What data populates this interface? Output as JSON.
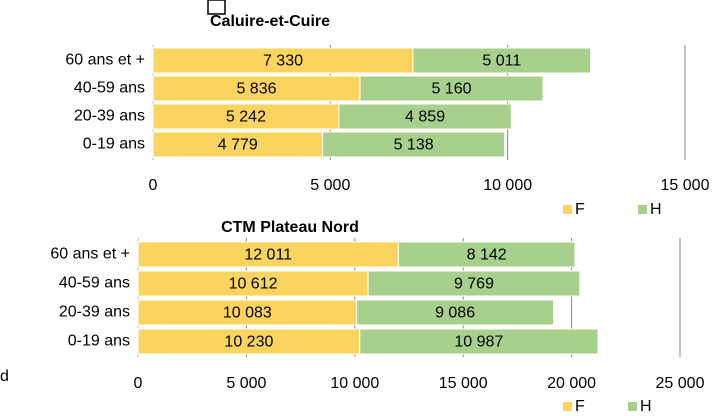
{
  "chart_data": [
    {
      "type": "bar",
      "orientation": "horizontal",
      "stacked": true,
      "title": "Caluire-et-Cuire",
      "categories": [
        "60 ans et +",
        "40-59 ans",
        "20-39 ans",
        "0-19 ans"
      ],
      "series": [
        {
          "name": "F",
          "color": "#fad45e",
          "values": [
            7330,
            5836,
            5242,
            4779
          ],
          "value_labels": [
            "7 330",
            "5 836",
            "5 242",
            "4 779"
          ]
        },
        {
          "name": "H",
          "color": "#a8d08d",
          "values": [
            5011,
            5160,
            4859,
            5138
          ],
          "value_labels": [
            "5 011",
            "5 160",
            "4 859",
            "5 138"
          ]
        }
      ],
      "xlim": [
        0,
        15000
      ],
      "xticks": [
        0,
        {
          "value": 5000,
          "label": "5 000"
        },
        {
          "value": 10000,
          "label": "10 000"
        },
        {
          "value": 15000,
          "label": "15 000"
        }
      ],
      "grid": true,
      "legend": "bottom-right"
    },
    {
      "type": "bar",
      "orientation": "horizontal",
      "stacked": true,
      "title": "CTM Plateau Nord",
      "categories": [
        "60 ans et +",
        "40-59 ans",
        "20-39 ans",
        "0-19 ans"
      ],
      "series": [
        {
          "name": "F",
          "color": "#fad45e",
          "values": [
            12011,
            10612,
            10083,
            10230
          ],
          "value_labels": [
            "12 011",
            "10 612",
            "10 083",
            "10 230"
          ]
        },
        {
          "name": "H",
          "color": "#a8d08d",
          "values": [
            8142,
            9769,
            9086,
            10987
          ],
          "value_labels": [
            "8 142",
            "9 769",
            "9 086",
            "10 987"
          ]
        }
      ],
      "xlim": [
        0,
        25000
      ],
      "xticks": [
        0,
        {
          "value": 5000,
          "label": "5 000"
        },
        {
          "value": 10000,
          "label": "10 000"
        },
        {
          "value": 15000,
          "label": "15 000"
        },
        {
          "value": 20000,
          "label": "20 000"
        },
        {
          "value": 25000,
          "label": "25 000"
        }
      ],
      "grid": true,
      "legend": "bottom-right"
    }
  ],
  "fragment": "d"
}
